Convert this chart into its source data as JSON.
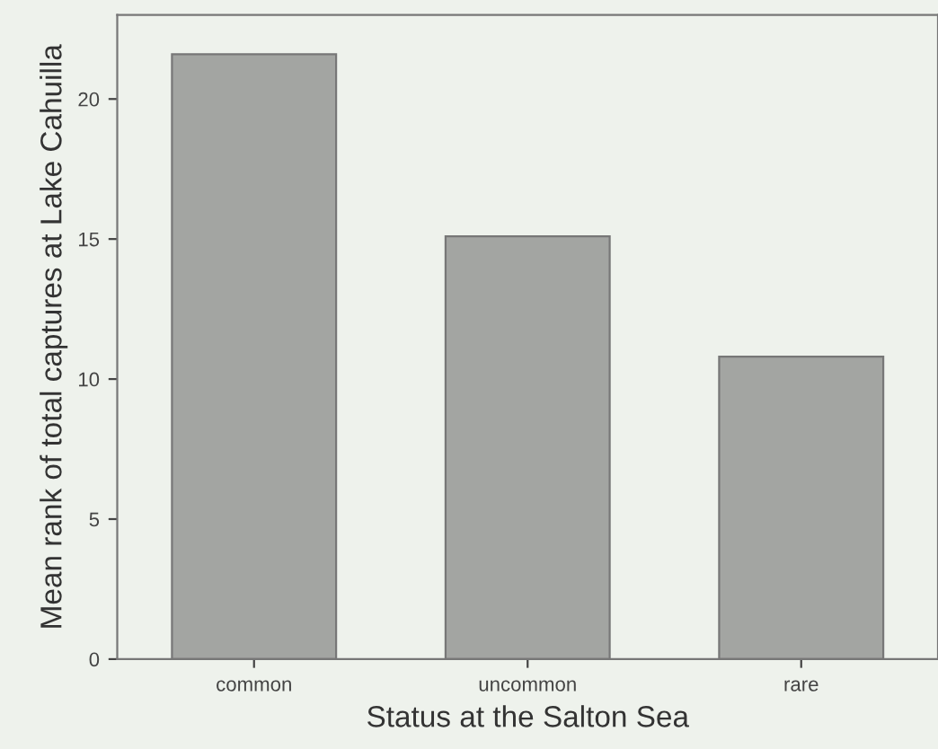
{
  "chart_data": {
    "type": "bar",
    "xlabel": "Status at the Salton Sea",
    "ylabel": "Mean rank of total captures at Lake Cahuilla",
    "categories": [
      "common",
      "uncommon",
      "rare"
    ],
    "values": [
      21.6,
      15.1,
      10.8
    ],
    "color": "#a3a5a2",
    "ylim": [
      0,
      23
    ],
    "yticks": [
      0,
      5,
      10,
      15,
      20
    ],
    "grid": false
  }
}
